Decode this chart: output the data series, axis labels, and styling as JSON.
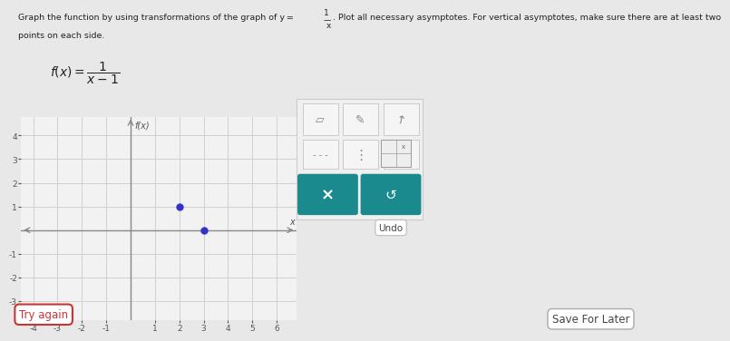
{
  "graph_bg": "#f2f2f2",
  "grid_color": "#d0d0d0",
  "axis_color": "#888888",
  "dot_color": "#3333cc",
  "dot_points": [
    [
      2,
      1
    ],
    [
      3,
      0
    ]
  ],
  "xlim": [
    -4.5,
    6.8
  ],
  "ylim": [
    -3.8,
    4.8
  ],
  "xticks": [
    -4,
    -3,
    -2,
    -1,
    1,
    2,
    3,
    4,
    5,
    6
  ],
  "yticks": [
    -3,
    -2,
    -1,
    1,
    2,
    3,
    4
  ],
  "xlabel": "x",
  "ylabel": "f(x)",
  "outer_bg": "#e8e8e8",
  "panel_bg": "#f7f7f7",
  "try_again_text": "Try again",
  "save_for_later_text": "Save For Later",
  "undo_text": "Undo",
  "toolbar_teal": "#1a8a8e",
  "toolbar_bg": "#f0f0f0",
  "toolbar_border": "#cccccc"
}
